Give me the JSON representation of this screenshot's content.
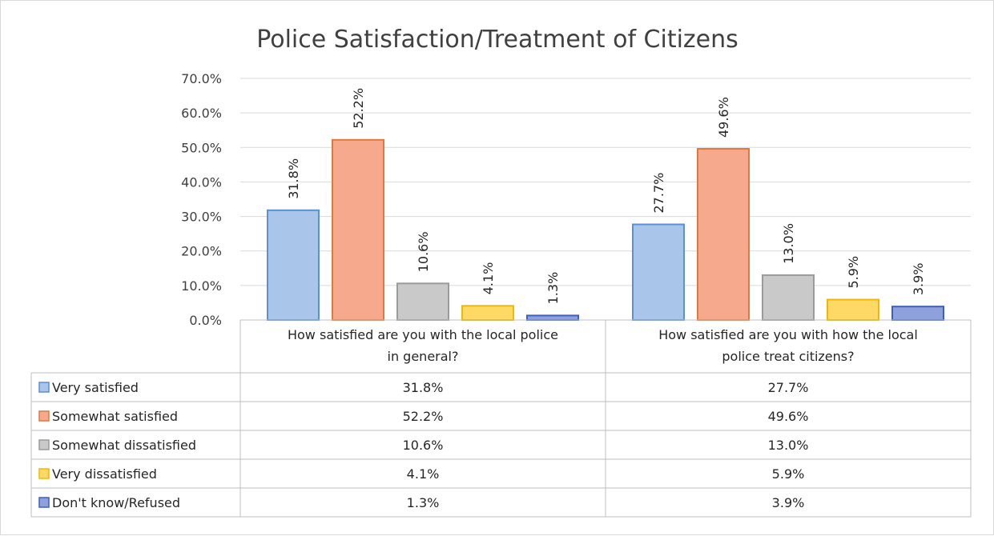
{
  "chart_data": {
    "type": "bar",
    "title": "Police Satisfaction/Treatment of Citizens",
    "categories": [
      [
        "How satisfied are you with the local police",
        "in general?"
      ],
      [
        "How satisfied are you with how the local",
        "police treat citizens?"
      ]
    ],
    "y_ticks": [
      "0.0%",
      "10.0%",
      "20.0%",
      "30.0%",
      "40.0%",
      "50.0%",
      "60.0%",
      "70.0%"
    ],
    "ylim": [
      0,
      70
    ],
    "grid": true,
    "legend": "data-table",
    "series": [
      {
        "name": "Very satisfied",
        "values": [
          31.8,
          27.7
        ],
        "labels": [
          "31.8%",
          "27.7%"
        ],
        "fill": "#a9c5ea",
        "stroke": "#5b8fd6"
      },
      {
        "name": "Somewhat satisfied",
        "values": [
          52.2,
          49.6
        ],
        "labels": [
          "52.2%",
          "49.6%"
        ],
        "fill": "#f6a98c",
        "stroke": "#e2783f"
      },
      {
        "name": "Somewhat dissatisfied",
        "values": [
          10.6,
          13.0
        ],
        "labels": [
          "10.6%",
          "13.0%"
        ],
        "fill": "#c9c9c9",
        "stroke": "#9b9b9b"
      },
      {
        "name": "Very dissatisfied",
        "values": [
          4.1,
          5.9
        ],
        "labels": [
          "4.1%",
          "5.9%"
        ],
        "fill": "#ffd966",
        "stroke": "#f0b800"
      },
      {
        "name": "Don't know/Refused",
        "values": [
          1.3,
          3.9
        ],
        "labels": [
          "1.3%",
          "3.9%"
        ],
        "fill": "#8ea1dc",
        "stroke": "#3f5fc0"
      }
    ]
  }
}
